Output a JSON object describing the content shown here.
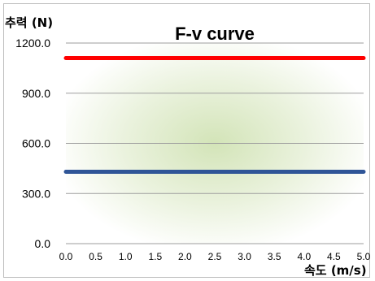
{
  "chart_data": {
    "type": "line",
    "title": "F-v curve",
    "ylabel": "추력 (N)",
    "xlabel": "속도 (m/s)",
    "x": [
      0.0,
      0.5,
      1.0,
      1.5,
      2.0,
      2.5,
      3.0,
      3.5,
      4.0,
      4.5,
      5.0
    ],
    "xticks": [
      "0.0",
      "0.5",
      "1.0",
      "1.5",
      "2.0",
      "2.5",
      "3.0",
      "3.5",
      "4.0",
      "4.5",
      "5.0"
    ],
    "xlim": [
      0,
      5
    ],
    "ylim": [
      0,
      1200
    ],
    "yticks": [
      "0.0",
      "300.0",
      "600.0",
      "900.0",
      "1200.0"
    ],
    "ytick_values": [
      0,
      300,
      600,
      900,
      1200
    ],
    "grid": true,
    "legend": "none",
    "plot_background": "radial green gradient",
    "series": [
      {
        "color": "#ff0000",
        "x": [
          0.0,
          5.0
        ],
        "values": [
          1110,
          1110
        ]
      },
      {
        "color": "#2f5597",
        "x": [
          0.0,
          5.0
        ],
        "values": [
          430,
          430
        ]
      }
    ]
  }
}
